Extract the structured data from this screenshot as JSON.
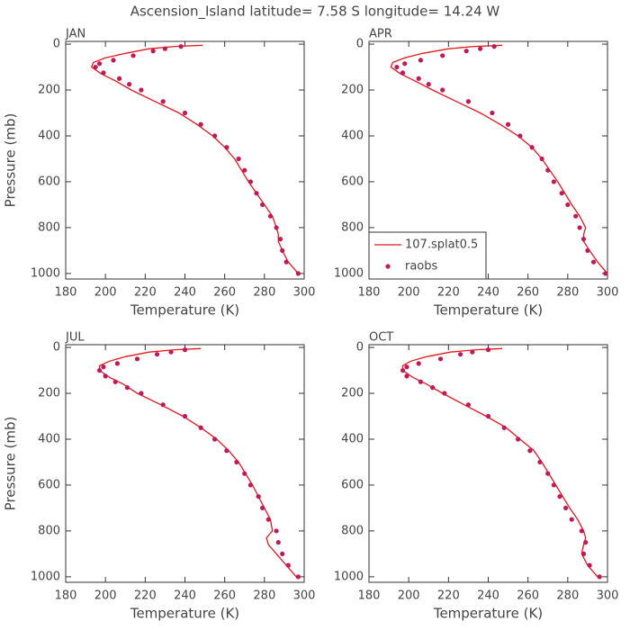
{
  "title": "Ascension_Island  latitude= 7.58 S longitude= 14.24 W",
  "chart_data": [
    {
      "type": "line",
      "title": "JAN",
      "xlabel": "Temperature (K)",
      "ylabel": "Pressure (mb)",
      "xlim": [
        180,
        300
      ],
      "xticks": [
        180,
        200,
        220,
        240,
        260,
        280,
        300
      ],
      "ylim": [
        1024,
        -12
      ],
      "yticks": [
        0,
        200,
        400,
        600,
        800,
        1000
      ],
      "series": [
        {
          "name": "107.splat0.5",
          "color": "#e31a1c",
          "style": "line",
          "x": [
            249,
            235,
            222,
            210,
            200,
            194,
            193,
            198,
            205,
            213,
            225,
            237,
            246,
            254,
            260,
            265,
            272,
            280,
            284,
            286,
            287,
            287,
            289,
            292,
            297
          ],
          "values": [
            5,
            10,
            20,
            40,
            60,
            80,
            100,
            130,
            160,
            200,
            250,
            300,
            350,
            400,
            450,
            500,
            600,
            700,
            750,
            800,
            830,
            860,
            900,
            950,
            1000
          ]
        },
        {
          "name": "raobs",
          "color": "#c2185b",
          "style": "markers",
          "x": [
            238,
            230,
            224,
            214,
            204,
            197,
            195,
            199,
            207,
            212,
            218,
            229,
            240,
            248,
            255,
            261,
            267,
            270,
            273,
            276,
            279,
            283,
            286,
            288,
            289,
            291,
            297
          ],
          "values": [
            10,
            20,
            30,
            50,
            70,
            85,
            100,
            125,
            150,
            175,
            200,
            250,
            300,
            350,
            400,
            450,
            500,
            550,
            600,
            650,
            700,
            750,
            800,
            850,
            900,
            950,
            1000
          ]
        }
      ]
    },
    {
      "type": "line",
      "title": "APR",
      "xlabel": "Temperature (K)",
      "xlim": [
        180,
        300
      ],
      "xticks": [
        180,
        200,
        220,
        240,
        260,
        280,
        300
      ],
      "ylim": [
        1024,
        -12
      ],
      "yticks": [
        0,
        200,
        400,
        600,
        800,
        1000
      ],
      "legend": "lower left",
      "series": [
        {
          "name": "107.splat0.5",
          "color": "#e31a1c",
          "style": "line",
          "x": [
            247,
            233,
            220,
            207,
            198,
            192,
            191,
            196,
            203,
            212,
            224,
            236,
            246,
            255,
            262,
            267,
            275,
            282,
            286,
            289,
            288,
            288,
            291,
            295,
            300
          ],
          "values": [
            5,
            10,
            20,
            40,
            60,
            80,
            100,
            130,
            160,
            200,
            250,
            300,
            350,
            400,
            450,
            500,
            600,
            700,
            750,
            800,
            830,
            860,
            900,
            950,
            1000
          ]
        },
        {
          "name": "raobs",
          "color": "#c2185b",
          "style": "markers",
          "x": [
            243,
            236,
            229,
            217,
            206,
            198,
            194,
            197,
            205,
            210,
            217,
            230,
            242,
            250,
            256,
            262,
            267,
            270,
            273,
            277,
            280,
            284,
            286,
            288,
            290,
            293,
            299
          ],
          "values": [
            10,
            20,
            30,
            50,
            70,
            85,
            100,
            125,
            150,
            175,
            200,
            250,
            300,
            350,
            400,
            450,
            500,
            550,
            600,
            650,
            700,
            750,
            800,
            850,
            900,
            950,
            1000
          ]
        }
      ]
    },
    {
      "type": "line",
      "title": "JUL",
      "xlabel": "Temperature (K)",
      "ylabel": "Pressure (mb)",
      "xlim": [
        180,
        300
      ],
      "xticks": [
        180,
        200,
        220,
        240,
        260,
        280,
        300
      ],
      "ylim": [
        1024,
        -12
      ],
      "yticks": [
        0,
        200,
        400,
        600,
        800,
        1000
      ],
      "series": [
        {
          "name": "107.splat0.5",
          "color": "#e31a1c",
          "style": "line",
          "x": [
            248,
            235,
            222,
            210,
            202,
            197,
            197,
            202,
            209,
            216,
            228,
            239,
            248,
            256,
            262,
            267,
            274,
            280,
            283,
            284,
            281,
            282,
            286,
            291,
            296
          ],
          "values": [
            5,
            10,
            20,
            40,
            60,
            80,
            100,
            130,
            160,
            200,
            250,
            300,
            350,
            400,
            450,
            500,
            600,
            700,
            750,
            800,
            830,
            860,
            900,
            950,
            1000
          ]
        },
        {
          "name": "raobs",
          "color": "#c2185b",
          "style": "markers",
          "x": [
            240,
            233,
            226,
            216,
            206,
            199,
            197,
            200,
            205,
            211,
            218,
            229,
            240,
            248,
            255,
            261,
            266,
            270,
            273,
            277,
            279,
            282,
            286,
            287,
            289,
            292,
            297
          ],
          "values": [
            10,
            20,
            30,
            50,
            70,
            85,
            100,
            125,
            150,
            175,
            200,
            250,
            300,
            350,
            400,
            450,
            500,
            550,
            600,
            650,
            700,
            750,
            800,
            850,
            900,
            950,
            1000
          ]
        }
      ]
    },
    {
      "type": "line",
      "title": "OCT",
      "xlabel": "Temperature (K)",
      "xlim": [
        180,
        300
      ],
      "xticks": [
        180,
        200,
        220,
        240,
        260,
        280,
        300
      ],
      "ylim": [
        1024,
        -12
      ],
      "yticks": [
        0,
        200,
        400,
        600,
        800,
        1000
      ],
      "series": [
        {
          "name": "107.splat0.5",
          "color": "#e31a1c",
          "style": "line",
          "x": [
            247,
            234,
            221,
            209,
            201,
            197,
            197,
            202,
            209,
            217,
            228,
            239,
            249,
            256,
            263,
            267,
            274,
            281,
            285,
            288,
            289,
            288,
            287,
            290,
            295
          ],
          "values": [
            5,
            10,
            20,
            40,
            60,
            80,
            100,
            130,
            160,
            200,
            250,
            300,
            350,
            400,
            450,
            500,
            600,
            700,
            750,
            800,
            830,
            860,
            900,
            950,
            1000
          ]
        },
        {
          "name": "raobs",
          "color": "#c2185b",
          "style": "markers",
          "x": [
            240,
            232,
            226,
            216,
            205,
            199,
            197,
            199,
            206,
            212,
            218,
            230,
            240,
            248,
            255,
            261,
            266,
            270,
            273,
            276,
            279,
            282,
            287,
            289,
            288,
            291,
            296
          ],
          "values": [
            10,
            20,
            30,
            50,
            70,
            85,
            100,
            125,
            150,
            175,
            200,
            250,
            300,
            350,
            400,
            450,
            500,
            550,
            600,
            650,
            700,
            750,
            800,
            850,
            900,
            950,
            1000
          ]
        }
      ]
    }
  ]
}
